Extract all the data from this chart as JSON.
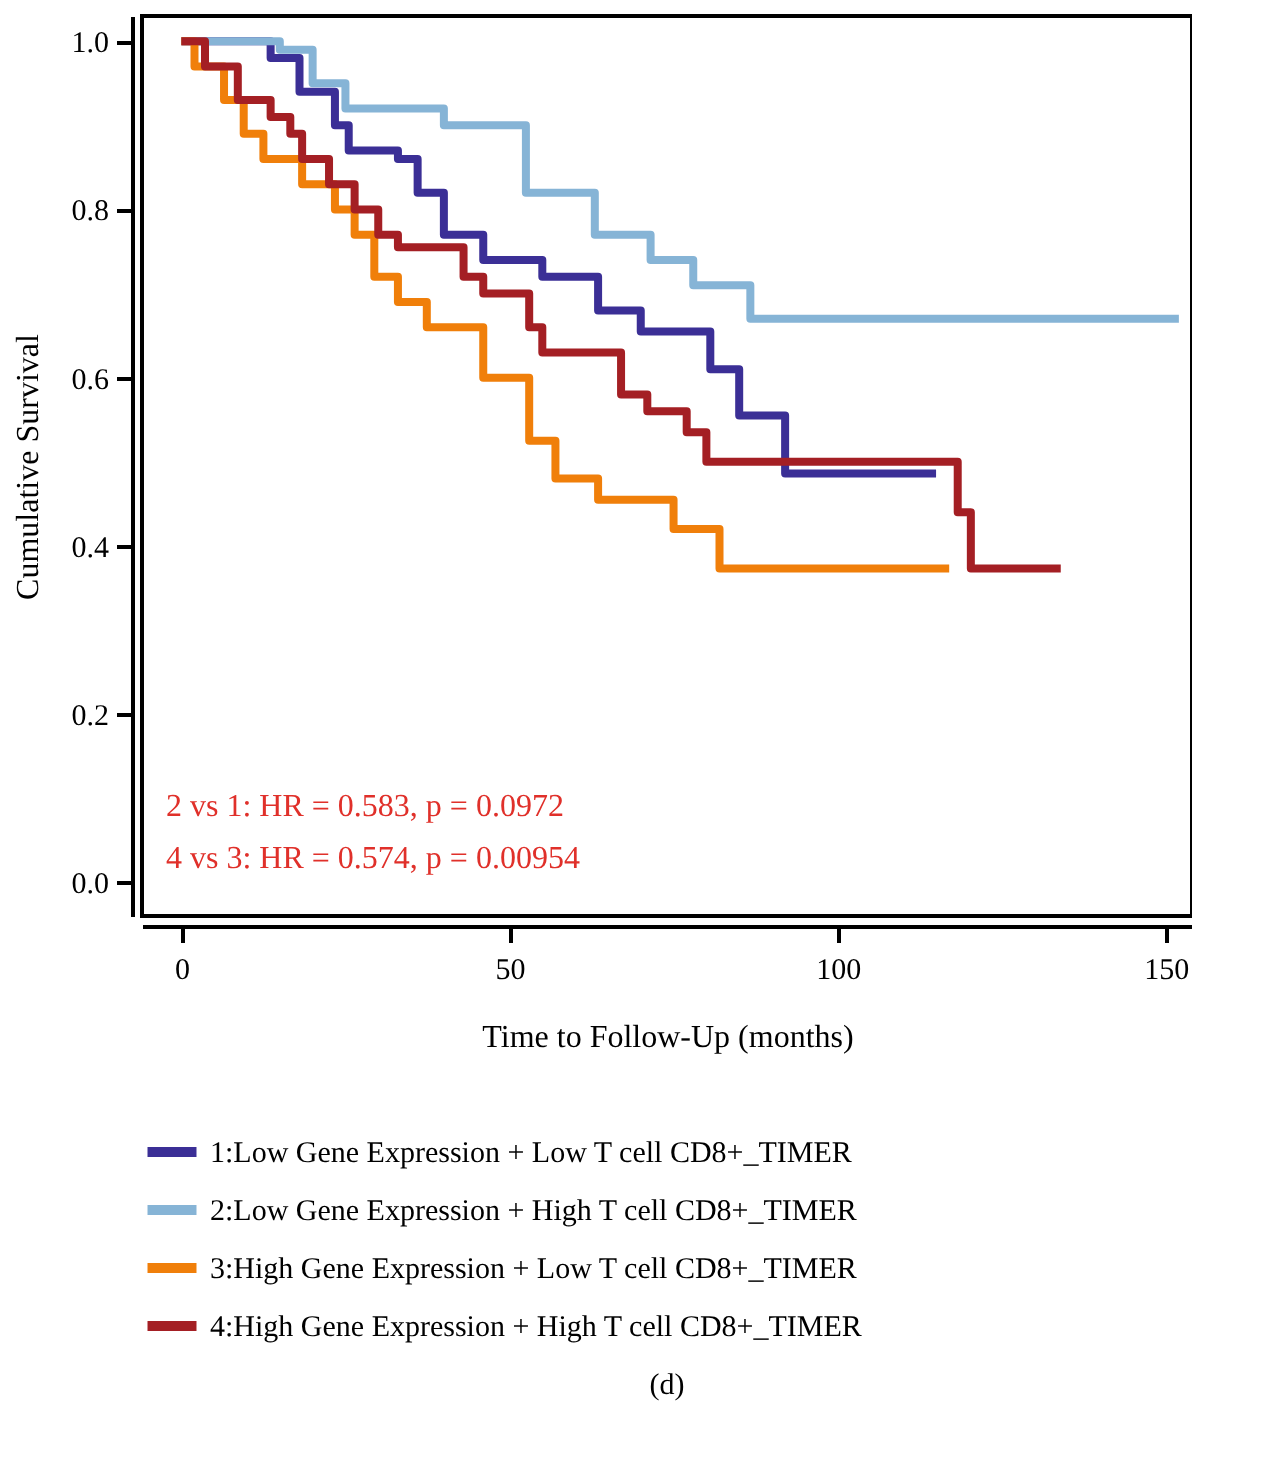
{
  "chart_data": {
    "type": "step",
    "xlabel": "Time to Follow-Up (months)",
    "ylabel": "Cumulative Survival",
    "xlim": [
      -6,
      154
    ],
    "xticks": [
      0,
      50,
      100,
      150
    ],
    "ylim": [
      -0.04,
      1.03
    ],
    "yticks": [
      {
        "value": 0,
        "label": "0.0"
      },
      {
        "value": 0.2,
        "label": "0.2"
      },
      {
        "value": 0.4,
        "label": "0.4"
      },
      {
        "value": 0.6,
        "label": "0.6"
      },
      {
        "value": 0.8,
        "label": "0.8"
      },
      {
        "value": 1,
        "label": "1.0"
      }
    ],
    "grid": false,
    "legend": "bottom",
    "line_style": "solid",
    "marker": "none",
    "annotations": [
      "2 vs 1: HR = 0.583, p = 0.0972",
      "4 vs 3: HR = 0.574, p = 0.00954",
      "(d)"
    ],
    "series": [
      {
        "name": "1:Low Gene Expression + Low T cell CD8+_TIMER",
        "color": "#3b2f96",
        "x": [
          0,
          13.6,
          18,
          23.4,
          25.5,
          33,
          36,
          40,
          46,
          55,
          63.5,
          70,
          80.6,
          85,
          92,
          115
        ],
        "values": [
          1.0,
          0.98,
          0.94,
          0.9,
          0.87,
          0.86,
          0.82,
          0.77,
          0.74,
          0.72,
          0.68,
          0.655,
          0.61,
          0.555,
          0.486,
          0.486
        ]
      },
      {
        "name": "2:Low Gene Expression + High T cell CD8+_TIMER",
        "color": "#86b4d6",
        "x": [
          0,
          15,
          20,
          25,
          40,
          52.5,
          63,
          71.5,
          78,
          86.7,
          152
        ],
        "values": [
          1.0,
          0.99,
          0.95,
          0.92,
          0.9,
          0.82,
          0.77,
          0.74,
          0.71,
          0.67,
          0.67
        ]
      },
      {
        "name": "3:High Gene Expression + Low T cell CD8+_TIMER",
        "color": "#f07f0a",
        "x": [
          0,
          2,
          6.5,
          9.5,
          12.5,
          18.4,
          23.4,
          26.4,
          29.4,
          33,
          37.4,
          46,
          53,
          57,
          63.5,
          75,
          82,
          117
        ],
        "values": [
          1.0,
          0.97,
          0.93,
          0.89,
          0.86,
          0.83,
          0.8,
          0.77,
          0.72,
          0.69,
          0.66,
          0.6,
          0.525,
          0.48,
          0.455,
          0.42,
          0.373,
          0.373
        ]
      },
      {
        "name": "4:High Gene Expression + High T cell CD8+_TIMER",
        "color": "#a41f24",
        "x": [
          0,
          3.6,
          8.6,
          13.6,
          16.6,
          18.4,
          22.5,
          26.4,
          30,
          33,
          43,
          46,
          53,
          55,
          67,
          71,
          77,
          80,
          118.3,
          120.3,
          134
        ],
        "values": [
          1.0,
          0.97,
          0.93,
          0.91,
          0.89,
          0.86,
          0.83,
          0.8,
          0.77,
          0.755,
          0.72,
          0.7,
          0.66,
          0.63,
          0.58,
          0.56,
          0.535,
          0.5,
          0.44,
          0.373,
          0.373
        ]
      }
    ]
  }
}
